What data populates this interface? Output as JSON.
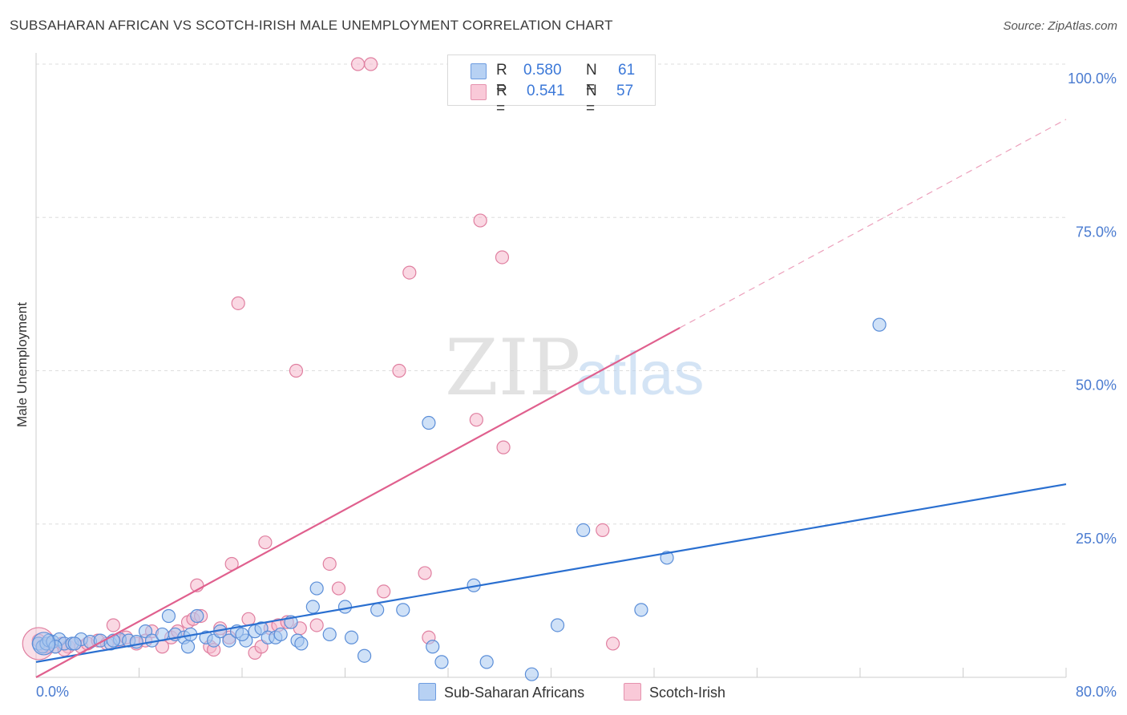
{
  "title": "SUBSAHARAN AFRICAN VS SCOTCH-IRISH MALE UNEMPLOYMENT CORRELATION CHART",
  "source": "Source: ZipAtlas.com",
  "watermark": {
    "zip": "ZIP",
    "atlas": "atlas"
  },
  "legend": {
    "r_label": "R =",
    "n_label": "N =",
    "series": [
      {
        "r": "0.580",
        "n": "61"
      },
      {
        "r": "0.541",
        "n": "57"
      }
    ]
  },
  "colors": {
    "blue_fill": "#a8c8f0",
    "blue_stroke": "#5b8ed8",
    "blue_line": "#2a6fd0",
    "pink_fill": "#f5b8cc",
    "pink_stroke": "#e07fa0",
    "pink_line": "#e0608e",
    "grid": "#dddddd"
  },
  "chart_data": {
    "type": "scatter",
    "title": "SUBSAHARAN AFRICAN VS SCOTCH-IRISH MALE UNEMPLOYMENT CORRELATION CHART",
    "xlabel": "",
    "ylabel": "Male Unemployment",
    "xlim": [
      0,
      80
    ],
    "ylim": [
      0,
      100
    ],
    "x_tick_labels": [
      "0.0%",
      "80.0%"
    ],
    "y_ticks": [
      25,
      50,
      75,
      100
    ],
    "y_tick_labels": [
      "25.0%",
      "50.0%",
      "75.0%",
      "100.0%"
    ],
    "grid": true,
    "series": [
      {
        "name": "Sub-Saharan Africans",
        "color": "blue",
        "r": 0.58,
        "n": 61,
        "trend": {
          "x": [
            0,
            80
          ],
          "y": [
            2.5,
            31.5
          ],
          "dashed_to": null
        },
        "points": [
          [
            0.2,
            5.5
          ],
          [
            0.5,
            5.0
          ],
          [
            0.8,
            5.5
          ],
          [
            1.0,
            6.0
          ],
          [
            1.3,
            5.8
          ],
          [
            1.8,
            6.2
          ],
          [
            2.2,
            5.5
          ],
          [
            2.8,
            5.5
          ],
          [
            3.5,
            6.2
          ],
          [
            4.2,
            5.8
          ],
          [
            5.0,
            6.0
          ],
          [
            5.8,
            5.5
          ],
          [
            6.5,
            6.2
          ],
          [
            7.2,
            6.0
          ],
          [
            7.8,
            5.8
          ],
          [
            8.5,
            7.5
          ],
          [
            9.0,
            6.0
          ],
          [
            9.8,
            7.0
          ],
          [
            10.3,
            10.0
          ],
          [
            10.8,
            7.0
          ],
          [
            11.5,
            6.5
          ],
          [
            11.8,
            5.0
          ],
          [
            12.5,
            10.0
          ],
          [
            13.2,
            6.5
          ],
          [
            13.8,
            6.0
          ],
          [
            14.3,
            7.5
          ],
          [
            15.0,
            6.0
          ],
          [
            15.6,
            7.5
          ],
          [
            16.3,
            6.0
          ],
          [
            17.0,
            7.5
          ],
          [
            17.5,
            8.0
          ],
          [
            18.0,
            6.5
          ],
          [
            18.6,
            6.5
          ],
          [
            19.0,
            7.0
          ],
          [
            19.8,
            9.0
          ],
          [
            20.3,
            6.0
          ],
          [
            20.6,
            5.5
          ],
          [
            21.5,
            11.5
          ],
          [
            21.8,
            14.5
          ],
          [
            22.8,
            7.0
          ],
          [
            24.0,
            11.5
          ],
          [
            24.5,
            6.5
          ],
          [
            25.5,
            3.5
          ],
          [
            26.5,
            11.0
          ],
          [
            28.5,
            11.0
          ],
          [
            30.5,
            41.5
          ],
          [
            30.8,
            5.0
          ],
          [
            31.5,
            2.5
          ],
          [
            34.0,
            15.0
          ],
          [
            35.0,
            2.5
          ],
          [
            38.5,
            0.5
          ],
          [
            40.5,
            8.5
          ],
          [
            42.5,
            24.0
          ],
          [
            47.0,
            11.0
          ],
          [
            49.0,
            19.5
          ],
          [
            65.5,
            57.5
          ],
          [
            3.0,
            5.5
          ],
          [
            6.0,
            6.0
          ],
          [
            12.0,
            7.0
          ],
          [
            16.0,
            7.0
          ],
          [
            1.5,
            5.0
          ]
        ]
      },
      {
        "name": "Scotch-Irish",
        "color": "pink",
        "r": 0.541,
        "n": 57,
        "trend": {
          "x": [
            0,
            50
          ],
          "y": [
            0,
            57
          ],
          "dashed_to": [
            80,
            91
          ]
        },
        "points": [
          [
            0.2,
            6.0
          ],
          [
            0.6,
            5.0
          ],
          [
            1.0,
            5.5
          ],
          [
            1.5,
            5.0
          ],
          [
            2.0,
            5.5
          ],
          [
            2.5,
            5.0
          ],
          [
            3.0,
            5.5
          ],
          [
            3.5,
            5.0
          ],
          [
            4.0,
            5.5
          ],
          [
            4.8,
            6.0
          ],
          [
            5.5,
            5.5
          ],
          [
            6.0,
            8.5
          ],
          [
            6.5,
            6.0
          ],
          [
            7.0,
            6.5
          ],
          [
            7.8,
            5.5
          ],
          [
            8.5,
            6.0
          ],
          [
            9.0,
            7.5
          ],
          [
            9.8,
            5.0
          ],
          [
            10.5,
            6.5
          ],
          [
            11.0,
            7.5
          ],
          [
            11.8,
            9.0
          ],
          [
            12.2,
            9.5
          ],
          [
            12.5,
            15.0
          ],
          [
            12.8,
            10.0
          ],
          [
            13.5,
            5.0
          ],
          [
            13.8,
            4.5
          ],
          [
            14.3,
            8.0
          ],
          [
            15.0,
            6.5
          ],
          [
            15.2,
            18.5
          ],
          [
            15.7,
            61.0
          ],
          [
            16.5,
            9.5
          ],
          [
            17.0,
            4.0
          ],
          [
            17.5,
            5.0
          ],
          [
            17.8,
            22.0
          ],
          [
            18.2,
            8.0
          ],
          [
            18.8,
            8.5
          ],
          [
            19.5,
            9.0
          ],
          [
            20.2,
            50.0
          ],
          [
            20.5,
            8.0
          ],
          [
            21.8,
            8.5
          ],
          [
            22.8,
            18.5
          ],
          [
            23.5,
            14.5
          ],
          [
            25.0,
            100.0
          ],
          [
            26.0,
            100.0
          ],
          [
            27.0,
            14.0
          ],
          [
            28.2,
            50.0
          ],
          [
            29.0,
            66.0
          ],
          [
            30.2,
            17.0
          ],
          [
            30.5,
            6.5
          ],
          [
            34.2,
            42.0
          ],
          [
            34.5,
            74.5
          ],
          [
            36.2,
            68.5
          ],
          [
            36.3,
            37.5
          ],
          [
            44.0,
            24.0
          ],
          [
            44.8,
            5.5
          ],
          [
            0.8,
            5.0
          ],
          [
            2.2,
            4.5
          ]
        ]
      }
    ]
  },
  "bottom_legend": [
    "Sub-Saharan Africans",
    "Scotch-Irish"
  ]
}
